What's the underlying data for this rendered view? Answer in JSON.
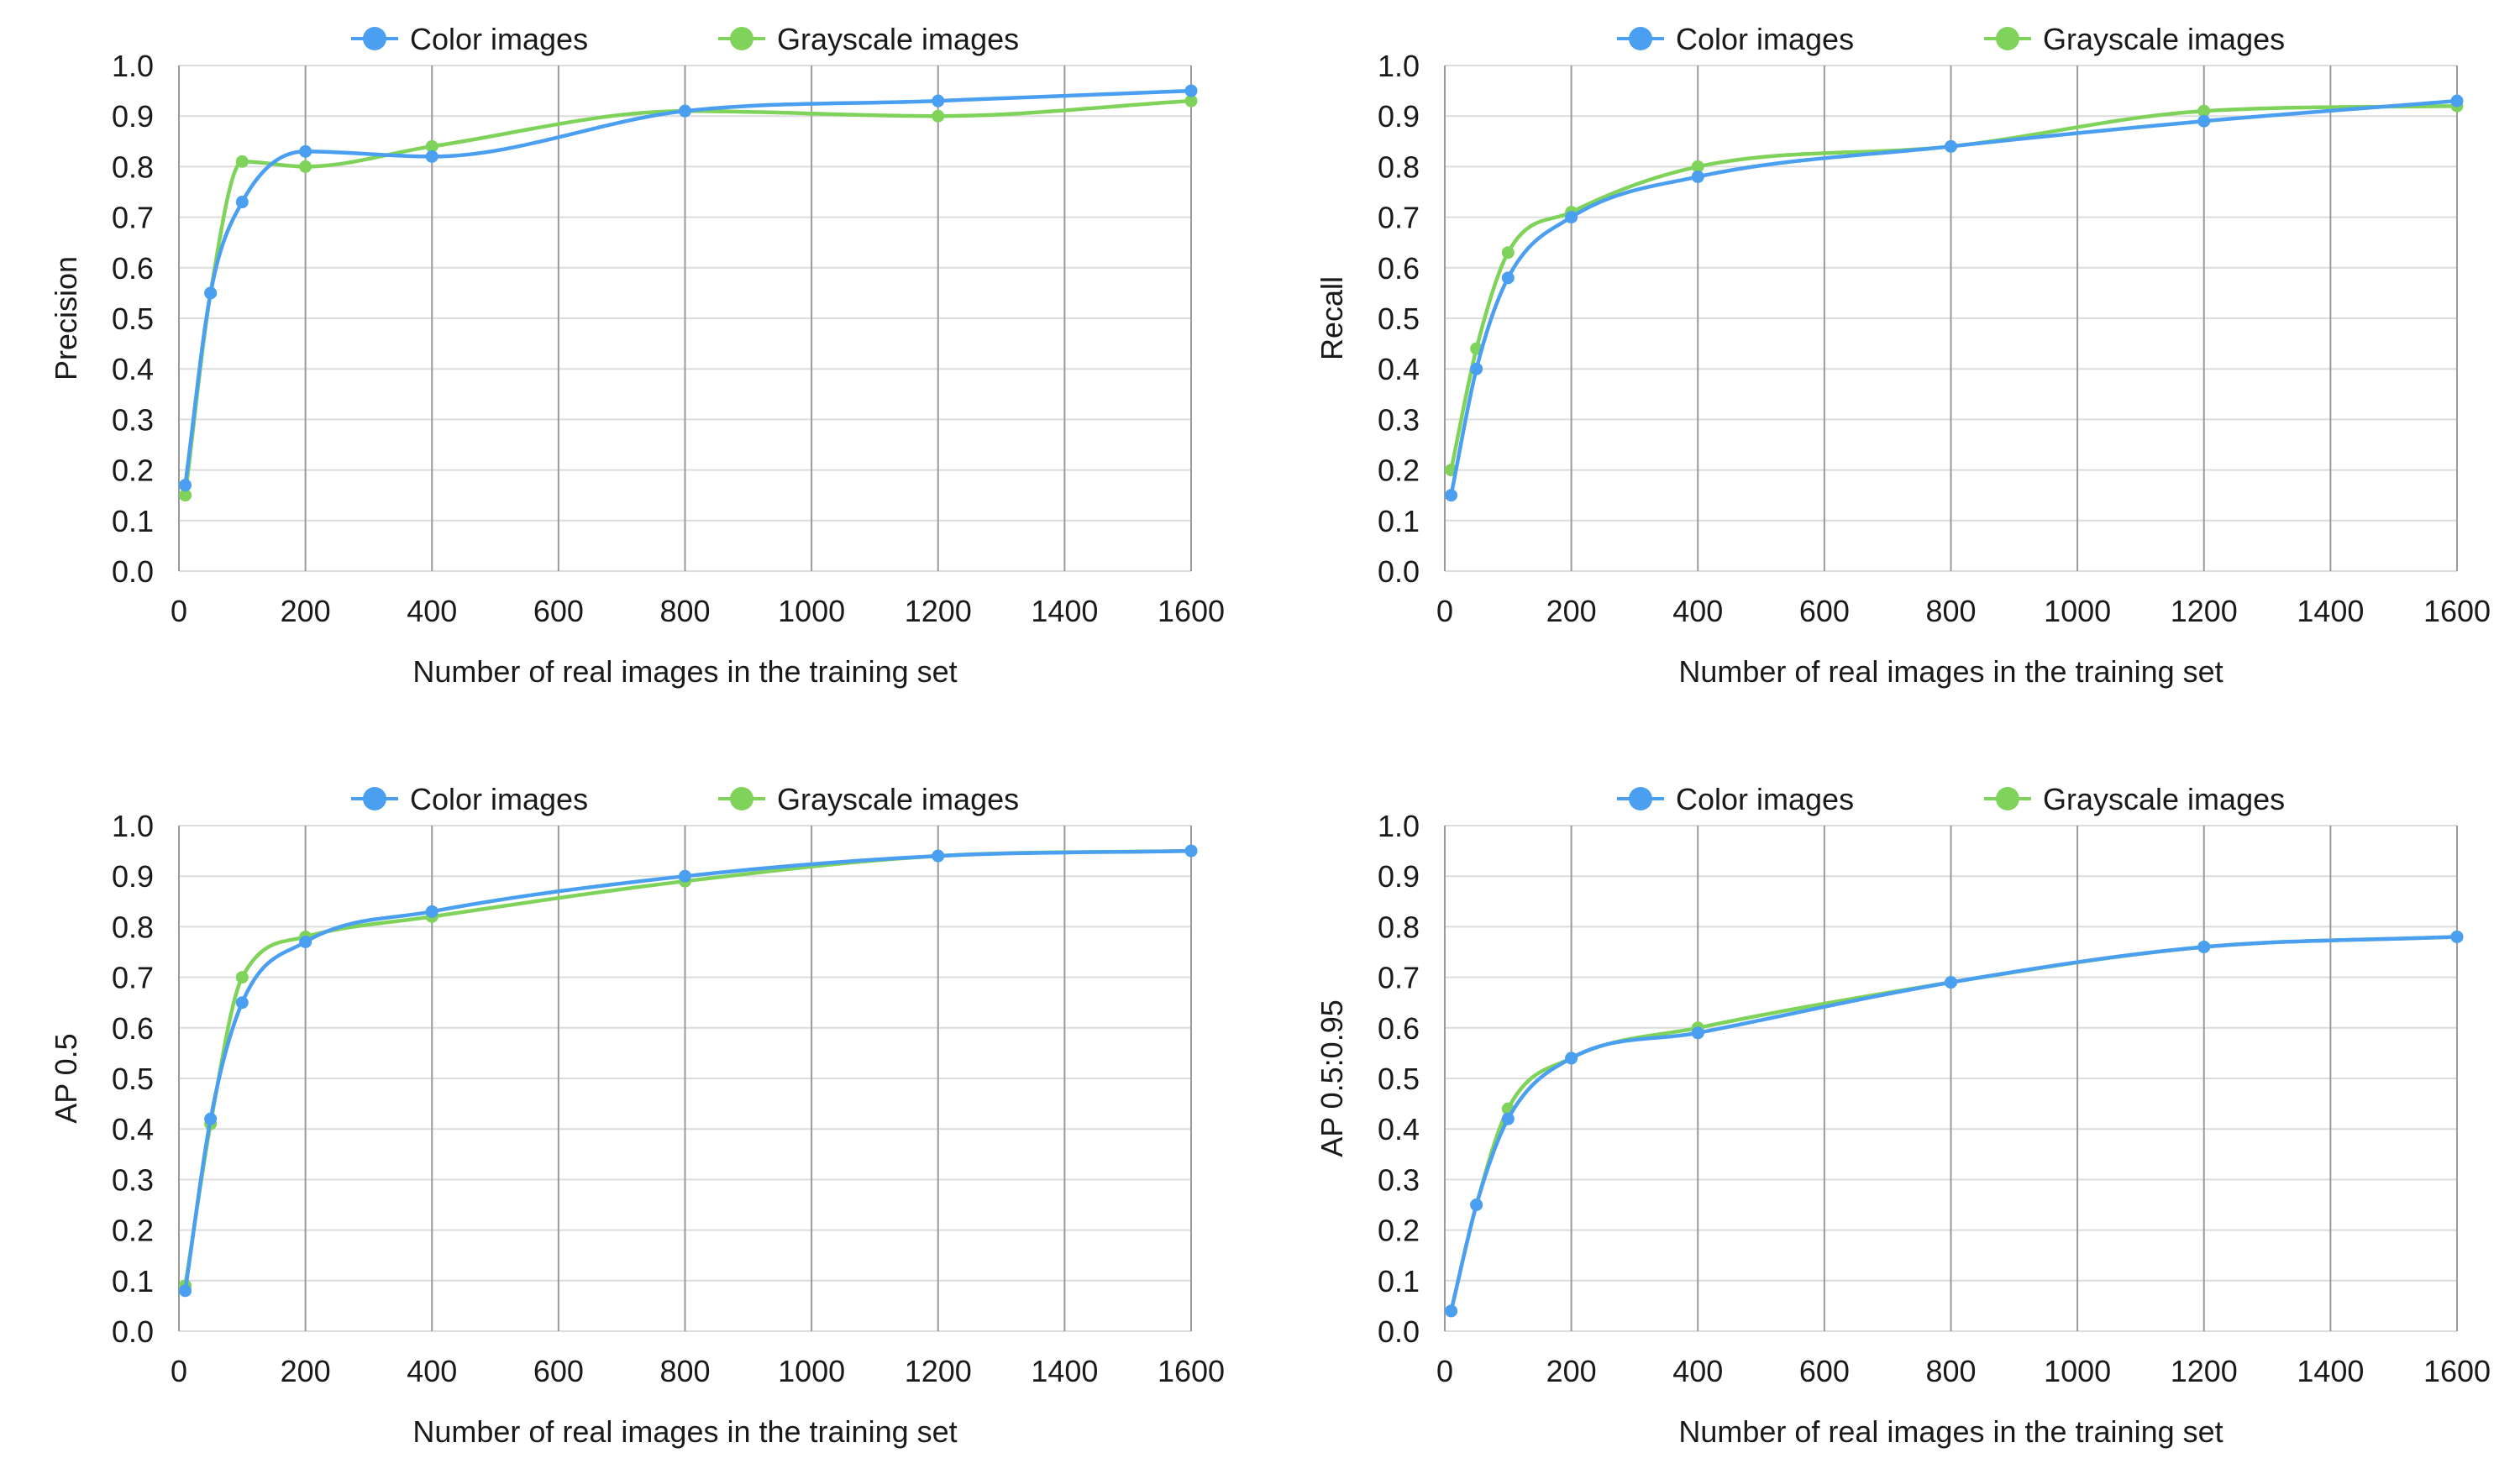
{
  "colors": {
    "color_series": "#4a9ff0",
    "grayscale_series": "#7fd35a",
    "grid": "#9a9a9a",
    "hgrid": "#dcdcdc"
  },
  "chart_data": [
    {
      "type": "line",
      "xlabel": "Number of real images in the training set",
      "ylabel": "Precision",
      "xlim": [
        0,
        1600
      ],
      "ylim": [
        0,
        1
      ],
      "xticks": [
        "0",
        "200",
        "400",
        "600",
        "800",
        "1000",
        "1200",
        "1400",
        "1600"
      ],
      "yticks": [
        "0.0",
        "0.1",
        "0.2",
        "0.3",
        "0.4",
        "0.5",
        "0.6",
        "0.7",
        "0.8",
        "0.9",
        "1.0"
      ],
      "legend_position": "top",
      "grid": true,
      "x": [
        10,
        50,
        100,
        200,
        400,
        800,
        1200,
        1600
      ],
      "series": [
        {
          "name": "Color images",
          "values": [
            0.17,
            0.55,
            0.73,
            0.83,
            0.82,
            0.91,
            0.93,
            0.95
          ]
        },
        {
          "name": "Grayscale images",
          "values": [
            0.15,
            0.55,
            0.81,
            0.8,
            0.84,
            0.91,
            0.9,
            0.93
          ]
        }
      ]
    },
    {
      "type": "line",
      "xlabel": "Number of real images in the training set",
      "ylabel": "Recall",
      "xlim": [
        0,
        1600
      ],
      "ylim": [
        0,
        1
      ],
      "xticks": [
        "0",
        "200",
        "400",
        "600",
        "800",
        "1000",
        "1200",
        "1400",
        "1600"
      ],
      "yticks": [
        "0.0",
        "0.1",
        "0.2",
        "0.3",
        "0.4",
        "0.5",
        "0.6",
        "0.7",
        "0.8",
        "0.9",
        "1.0"
      ],
      "legend_position": "top",
      "grid": true,
      "x": [
        10,
        50,
        100,
        200,
        400,
        800,
        1200,
        1600
      ],
      "series": [
        {
          "name": "Color images",
          "values": [
            0.15,
            0.4,
            0.58,
            0.7,
            0.78,
            0.84,
            0.89,
            0.93
          ]
        },
        {
          "name": "Grayscale images",
          "values": [
            0.2,
            0.44,
            0.63,
            0.71,
            0.8,
            0.84,
            0.91,
            0.92
          ]
        }
      ]
    },
    {
      "type": "line",
      "xlabel": "Number of real images in the training set",
      "ylabel": "AP 0.5",
      "xlim": [
        0,
        1600
      ],
      "ylim": [
        0,
        1
      ],
      "xticks": [
        "0",
        "200",
        "400",
        "600",
        "800",
        "1000",
        "1200",
        "1400",
        "1600"
      ],
      "yticks": [
        "0.0",
        "0.1",
        "0.2",
        "0.3",
        "0.4",
        "0.5",
        "0.6",
        "0.7",
        "0.8",
        "0.9",
        "1.0"
      ],
      "legend_position": "top",
      "grid": true,
      "x": [
        10,
        50,
        100,
        200,
        400,
        800,
        1200,
        1600
      ],
      "series": [
        {
          "name": "Color images",
          "values": [
            0.08,
            0.42,
            0.65,
            0.77,
            0.83,
            0.9,
            0.94,
            0.95
          ]
        },
        {
          "name": "Grayscale images",
          "values": [
            0.09,
            0.41,
            0.7,
            0.78,
            0.82,
            0.89,
            0.94,
            0.95
          ]
        }
      ]
    },
    {
      "type": "line",
      "xlabel": "Number of real images in the training set",
      "ylabel": "AP 0.5:0.95",
      "xlim": [
        0,
        1600
      ],
      "ylim": [
        0,
        1
      ],
      "xticks": [
        "0",
        "200",
        "400",
        "600",
        "800",
        "1000",
        "1200",
        "1400",
        "1600"
      ],
      "yticks": [
        "0.0",
        "0.1",
        "0.2",
        "0.3",
        "0.4",
        "0.5",
        "0.6",
        "0.7",
        "0.8",
        "0.9",
        "1.0"
      ],
      "legend_position": "top",
      "grid": true,
      "x": [
        10,
        50,
        100,
        200,
        400,
        800,
        1200,
        1600
      ],
      "series": [
        {
          "name": "Color images",
          "values": [
            0.04,
            0.25,
            0.42,
            0.54,
            0.59,
            0.69,
            0.76,
            0.78
          ]
        },
        {
          "name": "Grayscale images",
          "values": [
            0.04,
            0.25,
            0.44,
            0.54,
            0.6,
            0.69,
            0.76,
            0.78
          ]
        }
      ]
    }
  ]
}
